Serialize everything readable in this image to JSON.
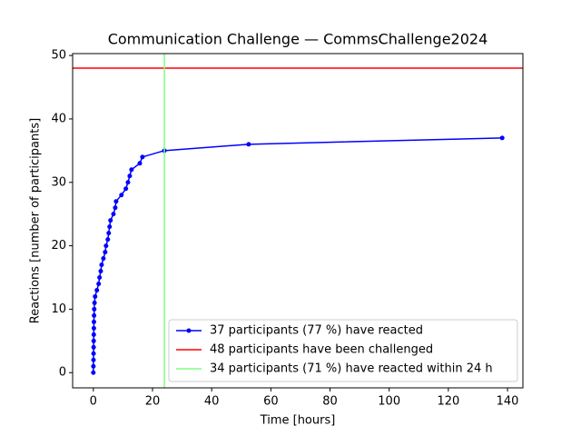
{
  "chart_data": {
    "type": "line",
    "title": "Communication Challenge — CommsChallenge2024",
    "xlabel": "Time [hours]",
    "ylabel": "Reactions [number of participants]",
    "xlim": [
      -7,
      145.2
    ],
    "ylim": [
      -2.4,
      50.3
    ],
    "xticks": [
      0,
      20,
      40,
      60,
      80,
      100,
      120,
      140
    ],
    "yticks": [
      0,
      10,
      20,
      30,
      40,
      50
    ],
    "legend": "lower right",
    "series": [
      {
        "name": "37 participants (77 %) have reacted",
        "color": "#0000ff",
        "x": [
          0,
          0.02,
          0.05,
          0.08,
          0.1,
          0.12,
          0.15,
          0.18,
          0.2,
          0.25,
          0.3,
          0.4,
          0.6,
          1.2,
          1.8,
          2.1,
          2.5,
          2.8,
          3.4,
          4,
          4.3,
          4.9,
          5.2,
          5.5,
          5.8,
          6.8,
          7.4,
          7.7,
          9.5,
          11,
          11.7,
          12.3,
          12.9,
          15.7,
          16.6,
          24,
          52.5,
          138.2
        ],
        "values": [
          0,
          1,
          2,
          3,
          4,
          5,
          6,
          7,
          8,
          9,
          10,
          11,
          12,
          13,
          14,
          15,
          16,
          17,
          18,
          19,
          20,
          21,
          22,
          23,
          24,
          25,
          26,
          27,
          28,
          29,
          30,
          31,
          32,
          33,
          34,
          35,
          36,
          37
        ]
      }
    ],
    "hline": {
      "name": "48 participants have been challenged",
      "color": "#ff0000",
      "value": 48
    },
    "vline": {
      "name": "34 participants (71 %) have reacted within 24 h",
      "color": "#80ff80",
      "value": 24
    }
  }
}
